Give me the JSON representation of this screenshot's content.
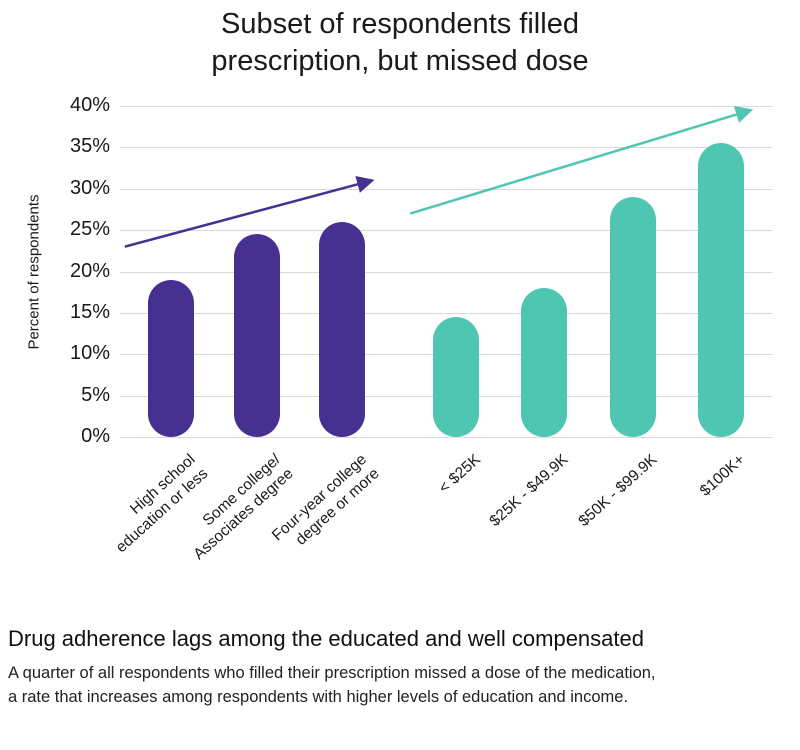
{
  "chart_data": {
    "type": "bar",
    "title": "Subset of respondents filled\nprescription, but missed dose",
    "ylabel": "Percent of respondents",
    "ylim": [
      0,
      40
    ],
    "ytick_step": 5,
    "ytick_suffix": "%",
    "grid": "horizontal",
    "legend": "none",
    "groups": [
      {
        "name": "education",
        "color": "#463190",
        "categories": [
          "High school\neducation or less",
          "Some college/\nAssociates degree",
          "Four-year college\ndegree or more"
        ],
        "values": [
          19,
          24.5,
          26
        ],
        "trend_arrow": {
          "from_pct": 23,
          "to_pct": 31
        }
      },
      {
        "name": "income",
        "color": "#4fc6b2",
        "categories": [
          "< $25K",
          "$25K - $49.9K",
          "$50K - $99.9K",
          "$100K+"
        ],
        "values": [
          14.5,
          18,
          29,
          35.5
        ],
        "trend_arrow": {
          "from_pct": 27,
          "to_pct": 39.5
        }
      }
    ]
  },
  "footer": {
    "heading": "Drug adherence lags among the educated and well compensated",
    "body": "A quarter of all respondents who filled their prescription missed a dose of the medication,\na rate that increases among respondents with higher levels of education and income."
  }
}
